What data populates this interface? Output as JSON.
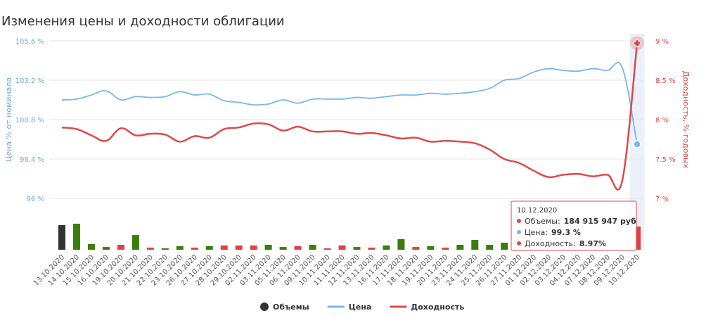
{
  "chart_data": {
    "type": "combo",
    "title": "Изменения цены и доходности облигации",
    "categories": [
      "13.10.2020",
      "14.10.2020",
      "15.10.2020",
      "16.10.2020",
      "19.10.2020",
      "20.10.2020",
      "21.10.2020",
      "22.10.2020",
      "23.10.2020",
      "26.10.2020",
      "27.10.2020",
      "28.10.2020",
      "29.10.2020",
      "02.11.2020",
      "03.11.2020",
      "05.11.2020",
      "06.11.2020",
      "09.11.2020",
      "10.11.2020",
      "11.11.2020",
      "12.11.2020",
      "13.11.2020",
      "16.11.2020",
      "17.11.2020",
      "18.11.2020",
      "19.11.2020",
      "20.11.2020",
      "23.11.2020",
      "24.11.2020",
      "25.11.2020",
      "26.11.2020",
      "27.11.2020",
      "01.12.2020",
      "02.12.2020",
      "03.12.2020",
      "04.12.2020",
      "07.12.2020",
      "08.12.2020",
      "09.12.2020",
      "10.12.2020"
    ],
    "ylabel": "Цена % от номинала",
    "y2label": "Доходность, % годовых",
    "ylim": [
      96,
      105.6
    ],
    "yticks": [
      {
        "value": 96,
        "label": "96 %"
      },
      {
        "value": 98.4,
        "label": "98.4 %"
      },
      {
        "value": 100.8,
        "label": "100.8 %"
      },
      {
        "value": 103.2,
        "label": "103.2 %"
      },
      {
        "value": 105.6,
        "label": "105.6 %"
      }
    ],
    "y2lim": [
      7,
      9
    ],
    "y2ticks": [
      {
        "value": 7,
        "label": "7 %"
      },
      {
        "value": 7.5,
        "label": "7.5 %"
      },
      {
        "value": 8,
        "label": "8 %"
      },
      {
        "value": 8.5,
        "label": "8.5 %"
      },
      {
        "value": 9,
        "label": "9 %"
      }
    ],
    "grid": true,
    "series": [
      {
        "name": "Объемы",
        "kind": "bar",
        "color": "#333333",
        "colors": [
          "#333333",
          "#3a7d0a",
          "#3a7d0a",
          "#3a7d0a",
          "#e04040",
          "#3a7d0a",
          "#e04040",
          "#3a7d0a",
          "#3a7d0a",
          "#e04040",
          "#3a7d0a",
          "#e04040",
          "#e04040",
          "#e04040",
          "#3a7d0a",
          "#3a7d0a",
          "#e04040",
          "#3a7d0a",
          "#e04040",
          "#e04040",
          "#3a7d0a",
          "#e04040",
          "#3a7d0a",
          "#3a7d0a",
          "#e04040",
          "#3a7d0a",
          "#e04040",
          "#3a7d0a",
          "#3a7d0a",
          "#3a7d0a",
          "#3a7d0a",
          "#3a7d0a",
          "#3a7d0a",
          "#e04040",
          "#3a7d0a",
          "#e04040",
          "#3a7d0a",
          "#e04040",
          "#3a7d0a",
          "#e04040"
        ],
        "values": [
          196000000,
          207000000,
          45000000,
          22000000,
          39000000,
          117000000,
          17000000,
          11000000,
          28000000,
          17000000,
          28000000,
          34000000,
          34000000,
          34000000,
          39000000,
          22000000,
          28000000,
          39000000,
          11000000,
          34000000,
          22000000,
          17000000,
          34000000,
          84000000,
          22000000,
          28000000,
          17000000,
          39000000,
          78000000,
          39000000,
          56000000,
          73000000,
          112000000,
          17000000,
          11000000,
          17000000,
          17000000,
          28000000,
          11000000,
          184915947
        ]
      },
      {
        "name": "Цена",
        "kind": "line",
        "color": "#7cb5ec",
        "values": [
          102.0,
          102.05,
          102.3,
          102.55,
          102.0,
          102.2,
          102.15,
          102.2,
          102.5,
          102.3,
          102.35,
          101.95,
          101.85,
          101.7,
          101.75,
          102.0,
          101.8,
          102.05,
          102.05,
          102.05,
          102.15,
          102.1,
          102.2,
          102.3,
          102.3,
          102.4,
          102.35,
          102.4,
          102.5,
          102.7,
          103.2,
          103.3,
          103.7,
          103.9,
          103.8,
          103.75,
          103.9,
          103.8,
          103.95,
          99.3
        ]
      },
      {
        "name": "Доходность",
        "kind": "line",
        "axis": "y2",
        "color": "#e04848",
        "values": [
          7.9,
          7.88,
          7.8,
          7.73,
          7.89,
          7.8,
          7.82,
          7.81,
          7.72,
          7.79,
          7.77,
          7.88,
          7.9,
          7.95,
          7.94,
          7.86,
          7.91,
          7.85,
          7.85,
          7.85,
          7.82,
          7.83,
          7.8,
          7.76,
          7.77,
          7.72,
          7.73,
          7.72,
          7.7,
          7.62,
          7.5,
          7.45,
          7.35,
          7.27,
          7.3,
          7.31,
          7.28,
          7.3,
          7.23,
          8.97
        ]
      }
    ],
    "tooltip": {
      "title": "10.12.2020",
      "rows": [
        {
          "name": "Объемы:",
          "value": "184 915 947 руб"
        },
        {
          "name": "Цена:",
          "value": "99.3 %"
        },
        {
          "name": "Доходность:",
          "value": "8.97%"
        }
      ]
    }
  }
}
